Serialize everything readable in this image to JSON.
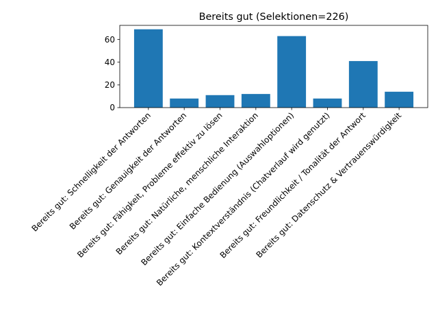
{
  "chart_data": {
    "type": "bar",
    "title": "Bereits gut (Selektionen=226)",
    "xlabel": "",
    "ylabel": "",
    "categories": [
      "Bereits gut: Schnelligkeit der Antworten",
      "Bereits gut: Genauigkeit der Antworten",
      "Bereits gut: Fähigkeit, Probleme effektiv zu lösen",
      "Bereits gut: Natürliche, menschliche Interaktion",
      "Bereits gut: Einfache Bedienung (Auswahloptionen)",
      "Bereits gut: Kontextverständnis (Chatverlauf wird genutzt)",
      "Bereits gut: Freundlichkeit / Tonalität der Antwort",
      "Bereits gut: Datenschutz & Vertrauenswürdigkeit"
    ],
    "values": [
      69,
      8,
      11,
      12,
      63,
      8,
      41,
      14
    ],
    "ylim": [
      0,
      72.45
    ],
    "yticks": [
      0,
      20,
      40,
      60
    ],
    "bar_color": "#1f77b4",
    "grid": false,
    "legend": "none"
  }
}
